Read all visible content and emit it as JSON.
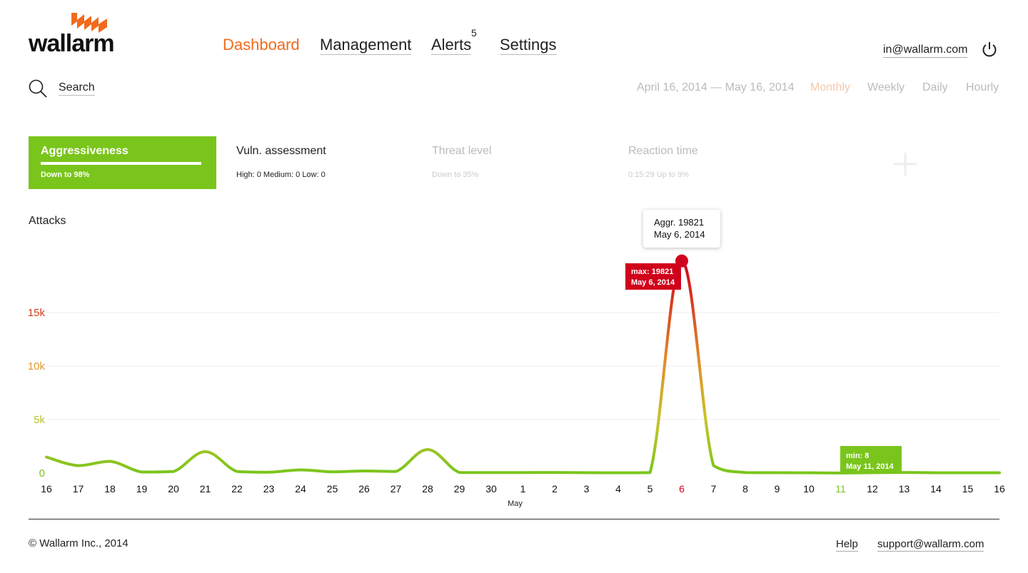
{
  "brand": {
    "name": "wallarm",
    "accent": "#f26a1b"
  },
  "nav": {
    "items": [
      {
        "label": "Dashboard",
        "active": true
      },
      {
        "label": "Management",
        "active": false
      },
      {
        "label": "Alerts",
        "active": false,
        "badge": "5"
      },
      {
        "label": "Settings",
        "active": false
      }
    ]
  },
  "user": {
    "email": "in@wallarm.com",
    "power_icon": "power-icon"
  },
  "search": {
    "label": "Search",
    "icon": "search-icon"
  },
  "date_range": "April 16, 2014 — May 16, 2014",
  "periods": [
    {
      "label": "Monthly",
      "active": true
    },
    {
      "label": "Weekly",
      "active": false
    },
    {
      "label": "Daily",
      "active": false
    },
    {
      "label": "Hourly",
      "active": false
    }
  ],
  "metrics": [
    {
      "title": "Aggressiveness",
      "sub": "Down to 98%",
      "state": "active"
    },
    {
      "title": "Vuln. assessment",
      "sub": "High: 0 Medium: 0 Low: 0",
      "state": "plain"
    },
    {
      "title": "Threat level",
      "sub": "Down to 35%",
      "state": "dim"
    },
    {
      "title": "Reaction time",
      "sub": "0:15:29 Up to 9%",
      "state": "dim"
    }
  ],
  "add_icon": "plus-icon",
  "chart_title": "Attacks",
  "chart_data": {
    "type": "line",
    "title": "Attacks",
    "y_ticks": [
      "0",
      "5k",
      "10k",
      "15k"
    ],
    "y_tick_values": [
      0,
      5000,
      10000,
      15000
    ],
    "y_tick_colors": [
      "#7ac51c",
      "#b8c030",
      "#e09a30",
      "#d0401b"
    ],
    "ylim": [
      0,
      15000
    ],
    "x_labels": [
      "16",
      "17",
      "18",
      "19",
      "20",
      "21",
      "22",
      "23",
      "24",
      "25",
      "26",
      "27",
      "28",
      "29",
      "30",
      "1",
      "2",
      "3",
      "4",
      "5",
      "6",
      "7",
      "8",
      "9",
      "10",
      "11",
      "12",
      "13",
      "14",
      "15",
      "16"
    ],
    "x_dates": [
      "Apr 16",
      "Apr 17",
      "Apr 18",
      "Apr 19",
      "Apr 20",
      "Apr 21",
      "Apr 22",
      "Apr 23",
      "Apr 24",
      "Apr 25",
      "Apr 26",
      "Apr 27",
      "Apr 28",
      "Apr 29",
      "Apr 30",
      "May 1",
      "May 2",
      "May 3",
      "May 4",
      "May 5",
      "May 6",
      "May 7",
      "May 8",
      "May 9",
      "May 10",
      "May 11",
      "May 12",
      "May 13",
      "May 14",
      "May 15",
      "May 16"
    ],
    "x_sublabel": "May",
    "x_sublabel_under": "1",
    "grid": true,
    "series": [
      {
        "values": [
          1500,
          700,
          1100,
          100,
          150,
          2000,
          150,
          80,
          300,
          120,
          200,
          150,
          2200,
          60,
          50,
          50,
          60,
          40,
          30,
          50,
          19821,
          700,
          50,
          40,
          30,
          8,
          40,
          60,
          30,
          30,
          30
        ],
        "color_low": "#7ac51c",
        "color_high": "#d0021b"
      }
    ],
    "max_point": {
      "value": 19821,
      "date": "May 6, 2014",
      "label": "max: 19821",
      "index": 20,
      "color": "#d0021b"
    },
    "min_point": {
      "value": 8,
      "date": "May 11, 2014",
      "label": "min: 8",
      "index": 25,
      "color": "#7ac51c"
    },
    "tooltip": {
      "line1": "Aggr. 19821",
      "line2": "May 6, 2014"
    }
  },
  "footer": {
    "copyright": "© Wallarm Inc., 2014",
    "links": [
      "Help",
      "support@wallarm.com"
    ]
  }
}
